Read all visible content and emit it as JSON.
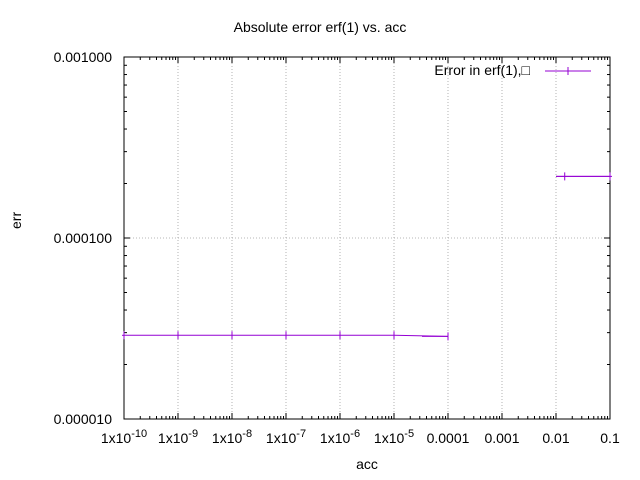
{
  "chart_data": {
    "type": "line",
    "title": "Absolute error erf(1) vs. acc",
    "xlabel": "acc",
    "ylabel": "err",
    "xscale": "log",
    "yscale": "log",
    "xlim": [
      1e-10,
      0.1
    ],
    "ylim": [
      1e-05,
      0.001
    ],
    "grid": true,
    "legend_position": "top-right",
    "x_ticks": [
      {
        "value": 1e-10,
        "base": "1x10",
        "exp": "-10"
      },
      {
        "value": 1e-09,
        "base": "1x10",
        "exp": "-9"
      },
      {
        "value": 1e-08,
        "base": "1x10",
        "exp": "-8"
      },
      {
        "value": 1e-07,
        "base": "1x10",
        "exp": "-7"
      },
      {
        "value": 1e-06,
        "base": "1x10",
        "exp": "-6"
      },
      {
        "value": 1e-05,
        "base": "1x10",
        "exp": "-5"
      },
      {
        "value": 0.0001,
        "base": "0.0001",
        "exp": ""
      },
      {
        "value": 0.001,
        "base": "0.001",
        "exp": ""
      },
      {
        "value": 0.01,
        "base": "0.01",
        "exp": ""
      },
      {
        "value": 0.1,
        "base": "0.1",
        "exp": ""
      }
    ],
    "y_ticks": [
      {
        "value": 0.001,
        "label": "0.001000"
      },
      {
        "value": 0.0001,
        "label": "0.000100"
      },
      {
        "value": 1e-05,
        "label": "0.000010"
      }
    ],
    "series": [
      {
        "name": "Error in erf(1),□",
        "color": "#9400d3",
        "x": [
          1e-10,
          1e-09,
          1e-08,
          1e-07,
          1e-06,
          1e-05,
          0.0001,
          0.01,
          0.1
        ],
        "y": [
          2.9e-05,
          2.9e-05,
          2.9e-05,
          2.9e-05,
          2.9e-05,
          2.9e-05,
          2.86e-05,
          0.000219,
          0.000219
        ]
      }
    ]
  }
}
